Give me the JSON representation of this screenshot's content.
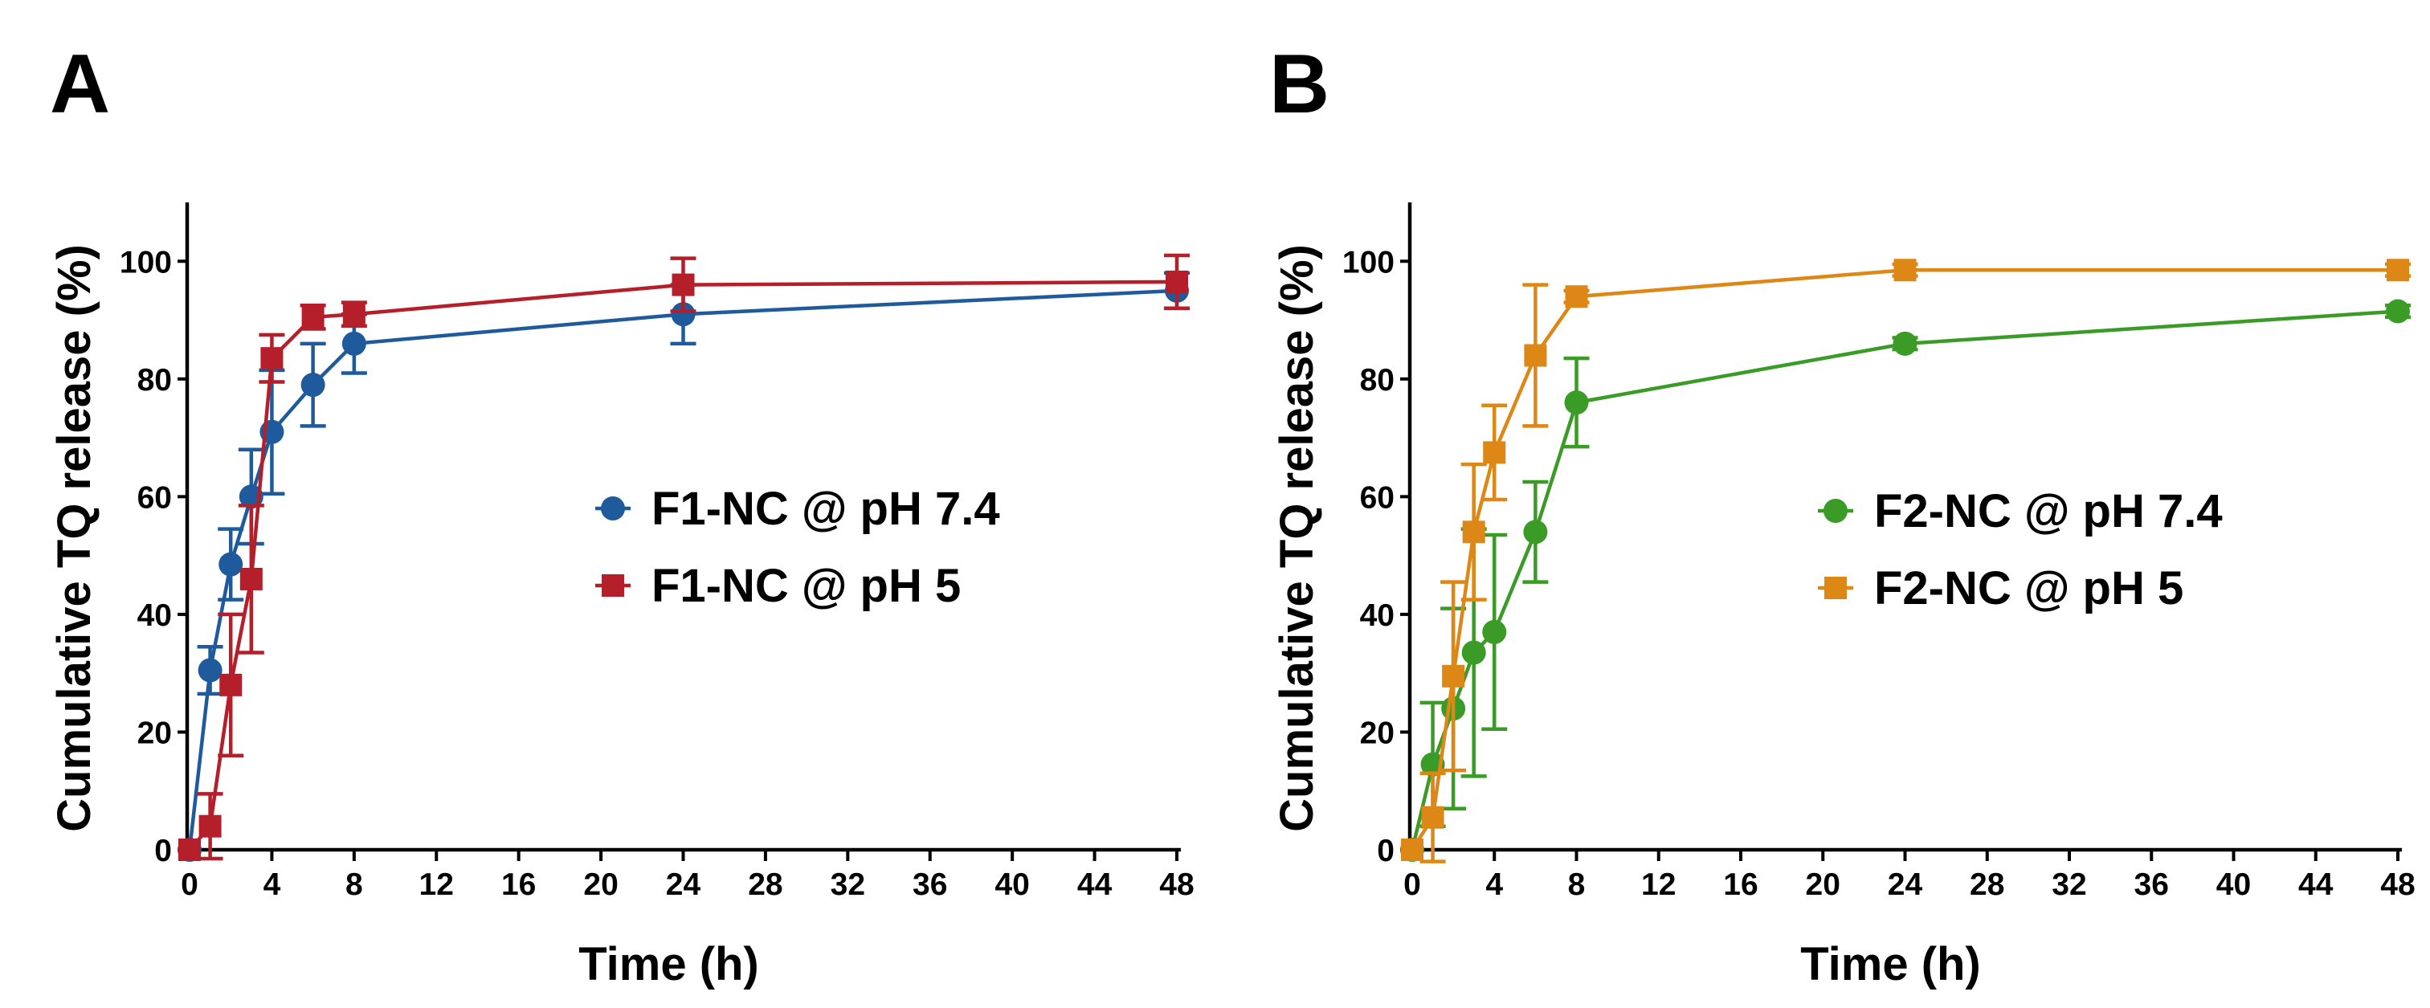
{
  "chart_data": [
    {
      "panel_label": "A",
      "type": "line",
      "xlabel": "Time (h)",
      "ylabel": "Cumulative TQ release (%)",
      "xlim": [
        0,
        48
      ],
      "ylim": [
        0,
        110
      ],
      "xticks": [
        0,
        4,
        8,
        12,
        16,
        20,
        24,
        28,
        32,
        36,
        40,
        44,
        48
      ],
      "yticks": [
        0,
        20,
        40,
        60,
        80,
        100
      ],
      "legend_position": "center-right",
      "series": [
        {
          "name": "F1-NC @ pH 7.4",
          "marker": "circle",
          "color": "#1f5b9c",
          "x": [
            0,
            1,
            2,
            3,
            4,
            6,
            8,
            24,
            48
          ],
          "y": [
            0,
            30.5,
            48.5,
            60,
            71,
            79,
            86,
            91,
            95
          ],
          "err": [
            0,
            4,
            6,
            8,
            10.5,
            7,
            5,
            5,
            3
          ]
        },
        {
          "name": "F1-NC @ pH 5",
          "marker": "square",
          "color": "#b51f2a",
          "x": [
            0,
            1,
            2,
            3,
            4,
            6,
            8,
            24,
            48
          ],
          "y": [
            0,
            4,
            28,
            46,
            83.5,
            90.5,
            91,
            96,
            96.5
          ],
          "err": [
            0,
            5.5,
            12,
            12.5,
            4,
            2,
            2,
            4.5,
            4.5
          ]
        }
      ]
    },
    {
      "panel_label": "B",
      "type": "line",
      "xlabel": "Time (h)",
      "ylabel": "Cumulative TQ release (%)",
      "xlim": [
        0,
        48
      ],
      "ylim": [
        0,
        110
      ],
      "xticks": [
        0,
        4,
        8,
        12,
        16,
        20,
        24,
        28,
        32,
        36,
        40,
        44,
        48
      ],
      "yticks": [
        0,
        20,
        40,
        60,
        80,
        100
      ],
      "legend_position": "center-right",
      "series": [
        {
          "name": "F2-NC @ pH 7.4",
          "marker": "circle",
          "color": "#3b9b27",
          "x": [
            0,
            1,
            2,
            3,
            4,
            6,
            8,
            24,
            48
          ],
          "y": [
            0,
            14.5,
            24,
            33.5,
            37,
            54,
            76,
            86,
            91.5
          ],
          "err": [
            0,
            10.5,
            17,
            21,
            16.5,
            8.5,
            7.5,
            1,
            1
          ]
        },
        {
          "name": "F2-NC @ pH 5",
          "marker": "square",
          "color": "#dd8716",
          "x": [
            0,
            1,
            2,
            3,
            4,
            6,
            8,
            24,
            48
          ],
          "y": [
            0,
            5.5,
            29.5,
            54,
            67.5,
            84,
            94,
            98.5,
            98.5
          ],
          "err": [
            0,
            7.5,
            16,
            11.5,
            8,
            12,
            1,
            1,
            1
          ]
        }
      ]
    }
  ]
}
